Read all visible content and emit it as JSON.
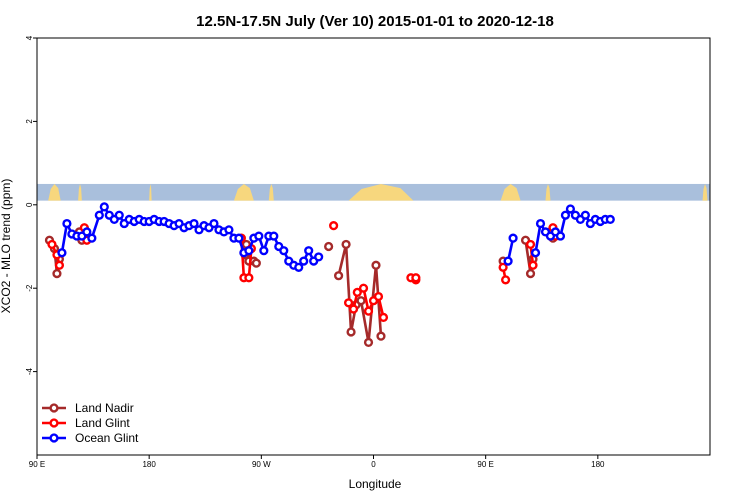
{
  "chart_data": {
    "type": "line",
    "title": "12.5N-17.5N July (Ver 10)   2015-01-01 to 2020-12-18",
    "xlabel": "Longitude",
    "ylabel": "XCO2 - MLO trend (ppm)",
    "xlim": [
      -90,
      180
    ],
    "ylim": [
      -6,
      4
    ],
    "x_ticks": [
      {
        "value": -90,
        "label": "90 E"
      },
      {
        "value": -45,
        "label": "180"
      },
      {
        "value": 0,
        "label": "90 W"
      },
      {
        "value": 45,
        "label": "0"
      },
      {
        "value": 90,
        "label": "90 E"
      },
      {
        "value": 135,
        "label": "180"
      }
    ],
    "y_ticks": [
      {
        "value": -4,
        "label": "-4"
      },
      {
        "value": -2,
        "label": "-2"
      },
      {
        "value": 0,
        "label": "0"
      },
      {
        "value": 2,
        "label": "2"
      },
      {
        "value": 4,
        "label": "4"
      }
    ],
    "grid": false,
    "legend_position": "bottom-left",
    "background_band": {
      "y_range": [
        0.1,
        0.5
      ],
      "ocean_color": "#a9bfdc",
      "land_color": "#f7d77e",
      "land_x_segments": [
        [
          -85.5,
          -80.5
        ],
        [
          -73.5,
          -72
        ],
        [
          -45,
          -44
        ],
        [
          -11,
          -3
        ],
        [
          3,
          5
        ],
        [
          35,
          61
        ],
        [
          96,
          104
        ],
        [
          114,
          116
        ],
        [
          177,
          179
        ]
      ]
    },
    "series": [
      {
        "name": "Land Nadir",
        "color": "#a52a2a",
        "segments": [
          [
            [
              -85,
              -0.85
            ],
            [
              -83,
              -1.05
            ],
            [
              -82,
              -1.65
            ],
            [
              -81,
              -1.3
            ]
          ],
          [
            [
              -73,
              -0.65
            ],
            [
              -72,
              -0.85
            ]
          ],
          [
            [
              -6,
              -0.95
            ],
            [
              -5,
              -1.35
            ],
            [
              -3,
              -1.35
            ],
            [
              -2,
              -1.4
            ]
          ],
          [
            [
              -6.5,
              -1.2
            ],
            [
              -5.5,
              -1.1
            ]
          ],
          [
            [
              27,
              -1.0
            ]
          ],
          [
            [
              31,
              -1.7
            ],
            [
              34,
              -0.95
            ],
            [
              36,
              -3.05
            ],
            [
              38,
              -2.4
            ],
            [
              40,
              -2.3
            ],
            [
              43,
              -3.3
            ],
            [
              46,
              -1.45
            ],
            [
              48,
              -3.15
            ]
          ],
          [
            [
              97,
              -1.35
            ]
          ],
          [
            [
              106,
              -0.85
            ],
            [
              108,
              -1.65
            ],
            [
              109,
              -1.3
            ]
          ],
          [
            [
              116,
              -0.65
            ],
            [
              117,
              -0.8
            ]
          ]
        ]
      },
      {
        "name": "Land Glint",
        "color": "#ff0000",
        "segments": [
          [
            [
              -84,
              -0.95
            ],
            [
              -82,
              -1.2
            ],
            [
              -81,
              -1.45
            ]
          ],
          [
            [
              -71,
              -0.55
            ],
            [
              -70,
              -0.85
            ]
          ],
          [
            [
              -8,
              -0.8
            ],
            [
              -7,
              -1.75
            ],
            [
              -5,
              -1.75
            ],
            [
              -4,
              -1.05
            ]
          ],
          [
            [
              29,
              -0.5
            ]
          ],
          [
            [
              35,
              -2.35
            ],
            [
              37,
              -2.5
            ],
            [
              38.5,
              -2.1
            ],
            [
              41,
              -2.0
            ],
            [
              43,
              -2.55
            ],
            [
              45,
              -2.3
            ],
            [
              47,
              -2.2
            ],
            [
              49,
              -2.7
            ]
          ],
          [
            [
              60,
              -1.75
            ],
            [
              62,
              -1.8
            ]
          ],
          [
            [
              62,
              -1.75
            ]
          ],
          [
            [
              97,
              -1.5
            ],
            [
              98,
              -1.8
            ]
          ],
          [
            [
              108,
              -0.95
            ],
            [
              109,
              -1.45
            ]
          ],
          [
            [
              117,
              -0.55
            ],
            [
              118,
              -0.75
            ]
          ]
        ]
      },
      {
        "name": "Ocean Glint",
        "color": "#0000ff",
        "segments": [
          [
            [
              -80,
              -1.15
            ],
            [
              -78,
              -0.45
            ],
            [
              -76,
              -0.7
            ],
            [
              -74,
              -0.75
            ],
            [
              -72,
              -0.75
            ],
            [
              -70,
              -0.65
            ],
            [
              -68,
              -0.8
            ],
            [
              -65,
              -0.25
            ],
            [
              -63,
              -0.05
            ],
            [
              -61,
              -0.25
            ],
            [
              -59,
              -0.35
            ],
            [
              -57,
              -0.25
            ],
            [
              -55,
              -0.45
            ],
            [
              -53,
              -0.35
            ],
            [
              -51,
              -0.4
            ],
            [
              -49,
              -0.35
            ],
            [
              -47,
              -0.4
            ],
            [
              -45,
              -0.4
            ],
            [
              -43,
              -0.35
            ],
            [
              -41,
              -0.4
            ],
            [
              -39,
              -0.4
            ],
            [
              -37,
              -0.45
            ],
            [
              -35,
              -0.5
            ],
            [
              -33,
              -0.45
            ],
            [
              -31,
              -0.55
            ],
            [
              -29,
              -0.5
            ],
            [
              -27,
              -0.45
            ],
            [
              -25,
              -0.6
            ],
            [
              -23,
              -0.5
            ],
            [
              -21,
              -0.55
            ],
            [
              -19,
              -0.45
            ],
            [
              -17,
              -0.6
            ],
            [
              -15,
              -0.65
            ],
            [
              -13,
              -0.6
            ],
            [
              -11,
              -0.8
            ],
            [
              -9,
              -0.8
            ],
            [
              -7,
              -1.15
            ],
            [
              -5,
              -1.1
            ],
            [
              -3,
              -0.8
            ],
            [
              -1,
              -0.75
            ],
            [
              1,
              -1.1
            ],
            [
              3,
              -0.75
            ],
            [
              5,
              -0.75
            ],
            [
              7,
              -1.0
            ],
            [
              9,
              -1.1
            ],
            [
              11,
              -1.35
            ],
            [
              13,
              -1.45
            ],
            [
              15,
              -1.5
            ],
            [
              17,
              -1.35
            ],
            [
              19,
              -1.1
            ],
            [
              21,
              -1.35
            ],
            [
              23,
              -1.25
            ]
          ],
          [
            [
              99,
              -1.35
            ],
            [
              101,
              -0.8
            ]
          ],
          [
            [
              110,
              -1.15
            ],
            [
              112,
              -0.45
            ],
            [
              114,
              -0.65
            ],
            [
              116,
              -0.75
            ],
            [
              118,
              -0.65
            ],
            [
              120,
              -0.75
            ],
            [
              122,
              -0.25
            ],
            [
              124,
              -0.1
            ],
            [
              126,
              -0.25
            ],
            [
              128,
              -0.35
            ],
            [
              130,
              -0.25
            ],
            [
              132,
              -0.45
            ],
            [
              134,
              -0.35
            ],
            [
              136,
              -0.4
            ],
            [
              138,
              -0.35
            ],
            [
              140,
              -0.35
            ]
          ]
        ]
      }
    ]
  }
}
